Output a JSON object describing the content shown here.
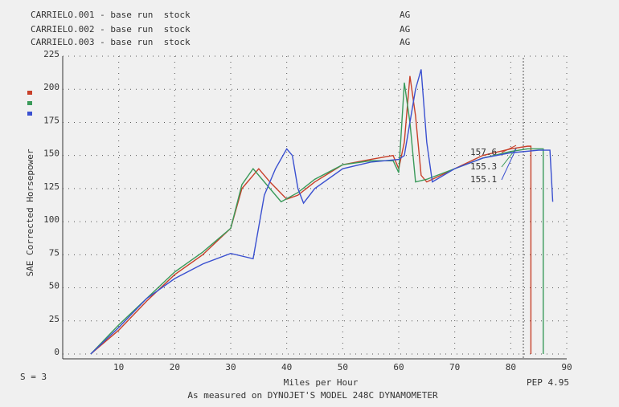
{
  "chart_data": {
    "type": "line",
    "y_label": "SAE Corrected Horsepower",
    "x_label": "Miles per Hour",
    "smoothing": "S = 3",
    "version": "PEP 4.95",
    "footer": "As measured on DYNOJET'S MODEL 248C DYNAMOMETER",
    "xlim": [
      0,
      90
    ],
    "ylim": [
      0,
      225
    ],
    "xticks": [
      10,
      20,
      30,
      40,
      50,
      60,
      70,
      80,
      90
    ],
    "yticks": [
      0,
      25,
      50,
      75,
      100,
      125,
      150,
      175,
      200,
      225
    ],
    "grid": true,
    "series": [
      {
        "name": "CARRIELO.001 - base run  stock",
        "operator": "AG",
        "color": "#c8402a",
        "end_value": 157.6,
        "x": [
          5,
          10,
          15,
          20,
          25,
          30,
          32,
          35,
          37,
          40,
          42,
          45,
          50,
          55,
          59,
          60,
          61,
          62,
          63,
          64,
          65,
          70,
          75,
          80,
          83,
          83.6,
          83.6
        ],
        "values": [
          0,
          18,
          40,
          60,
          75,
          95,
          125,
          140,
          130,
          117,
          120,
          130,
          143,
          147,
          150,
          140,
          160,
          210,
          180,
          135,
          130,
          140,
          150,
          155,
          157,
          157,
          0
        ]
      },
      {
        "name": "CARRIELO.002 - base run  stock",
        "operator": "AG",
        "color": "#3a9a5a",
        "end_value": 155.3,
        "x": [
          5,
          10,
          15,
          20,
          25,
          30,
          32,
          34,
          37,
          39,
          42,
          45,
          50,
          55,
          59,
          60,
          61,
          62,
          63,
          65,
          70,
          75,
          80,
          83,
          85.8,
          85.8
        ],
        "values": [
          0,
          22,
          42,
          62,
          77,
          95,
          128,
          140,
          125,
          115,
          122,
          132,
          143,
          146,
          146,
          137,
          205,
          175,
          130,
          132,
          140,
          148,
          153,
          155,
          155,
          0
        ]
      },
      {
        "name": "CARRIELO.003 - base run  stock",
        "operator": "AG",
        "color": "#3a50d0",
        "end_value": 155.1,
        "x": [
          5,
          10,
          15,
          20,
          25,
          30,
          33,
          34,
          36,
          38,
          40,
          41,
          42,
          43,
          45,
          50,
          55,
          60,
          61,
          63,
          64,
          65,
          66,
          70,
          75,
          80,
          85,
          87,
          87.5
        ],
        "values": [
          0,
          20,
          42,
          57,
          68,
          76,
          73,
          72,
          120,
          140,
          155,
          150,
          125,
          114,
          125,
          140,
          145,
          147,
          150,
          200,
          215,
          160,
          130,
          140,
          148,
          152,
          154,
          154,
          115
        ]
      }
    ]
  }
}
